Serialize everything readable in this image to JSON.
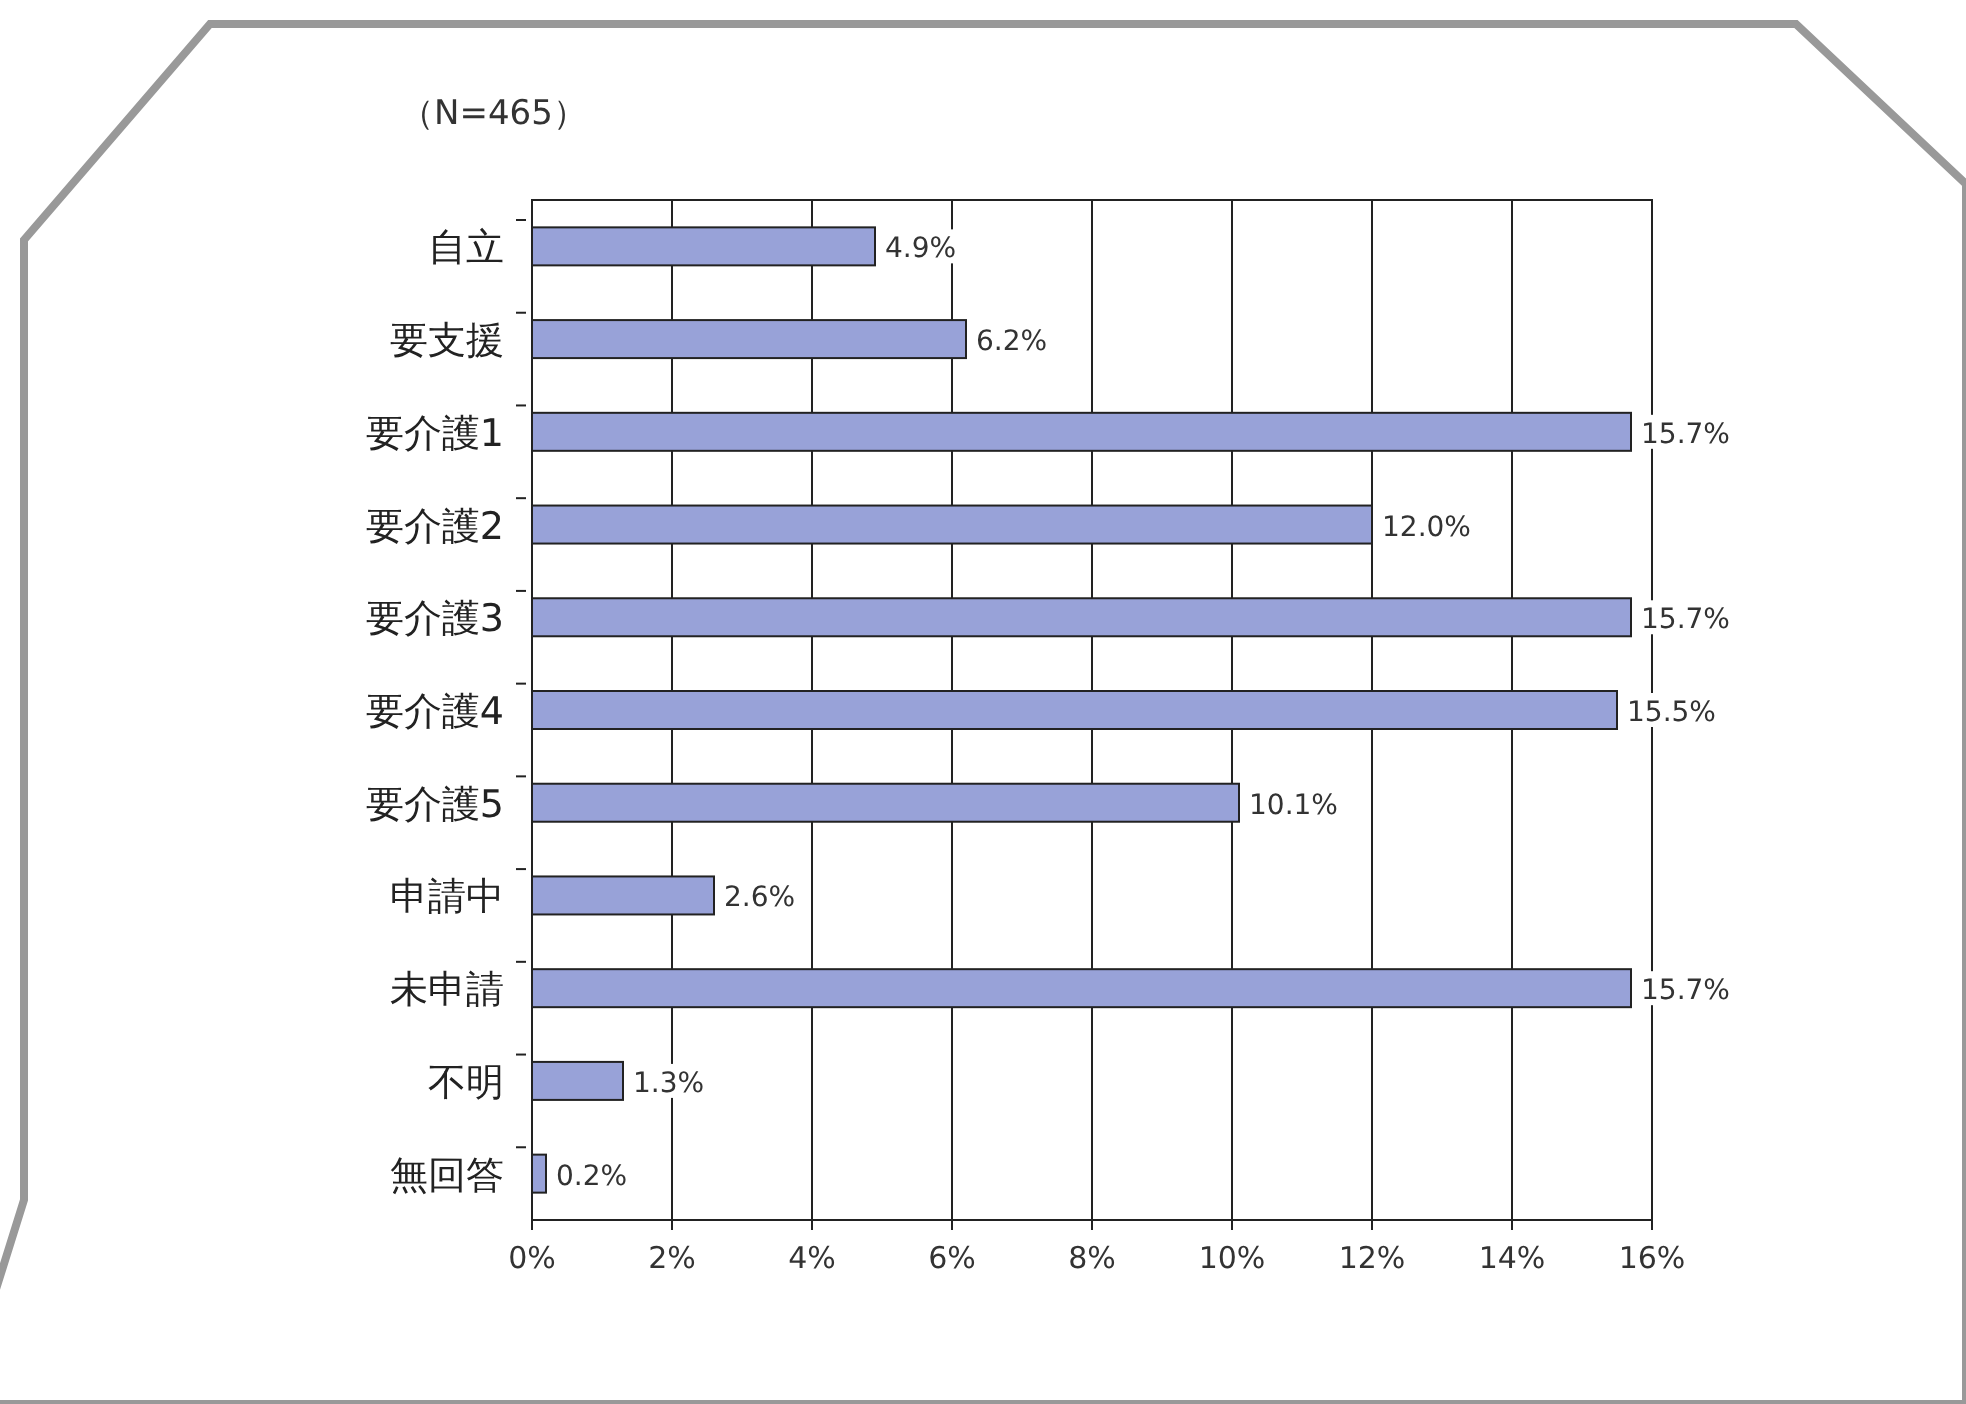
{
  "chart_data": {
    "type": "bar",
    "orientation": "horizontal",
    "title": "（N=465）",
    "categories": [
      "自立",
      "要支援",
      "要介護1",
      "要介護2",
      "要介護3",
      "要介護4",
      "要介護5",
      "申請中",
      "未申請",
      "不明",
      "無回答"
    ],
    "values": [
      4.9,
      6.2,
      15.7,
      12.0,
      15.7,
      15.5,
      10.1,
      2.6,
      15.7,
      1.3,
      0.2
    ],
    "value_labels": [
      "4.9%",
      "6.2%",
      "15.7%",
      "12.0%",
      "15.7%",
      "15.5%",
      "10.1%",
      "2.6%",
      "15.7%",
      "1.3%",
      "0.2%"
    ],
    "color": "#98a2d8",
    "xlim": [
      0,
      16
    ],
    "xticks": [
      {
        "value": 0,
        "label": "0%"
      },
      {
        "value": 2,
        "label": "2%"
      },
      {
        "value": 4,
        "label": "4%"
      },
      {
        "value": 6,
        "label": "6%"
      },
      {
        "value": 8,
        "label": "8%"
      },
      {
        "value": 10,
        "label": "10%"
      },
      {
        "value": 12,
        "label": "12%"
      },
      {
        "value": 14,
        "label": "14%"
      },
      {
        "value": 16,
        "label": "16%"
      }
    ],
    "grid": "x"
  }
}
